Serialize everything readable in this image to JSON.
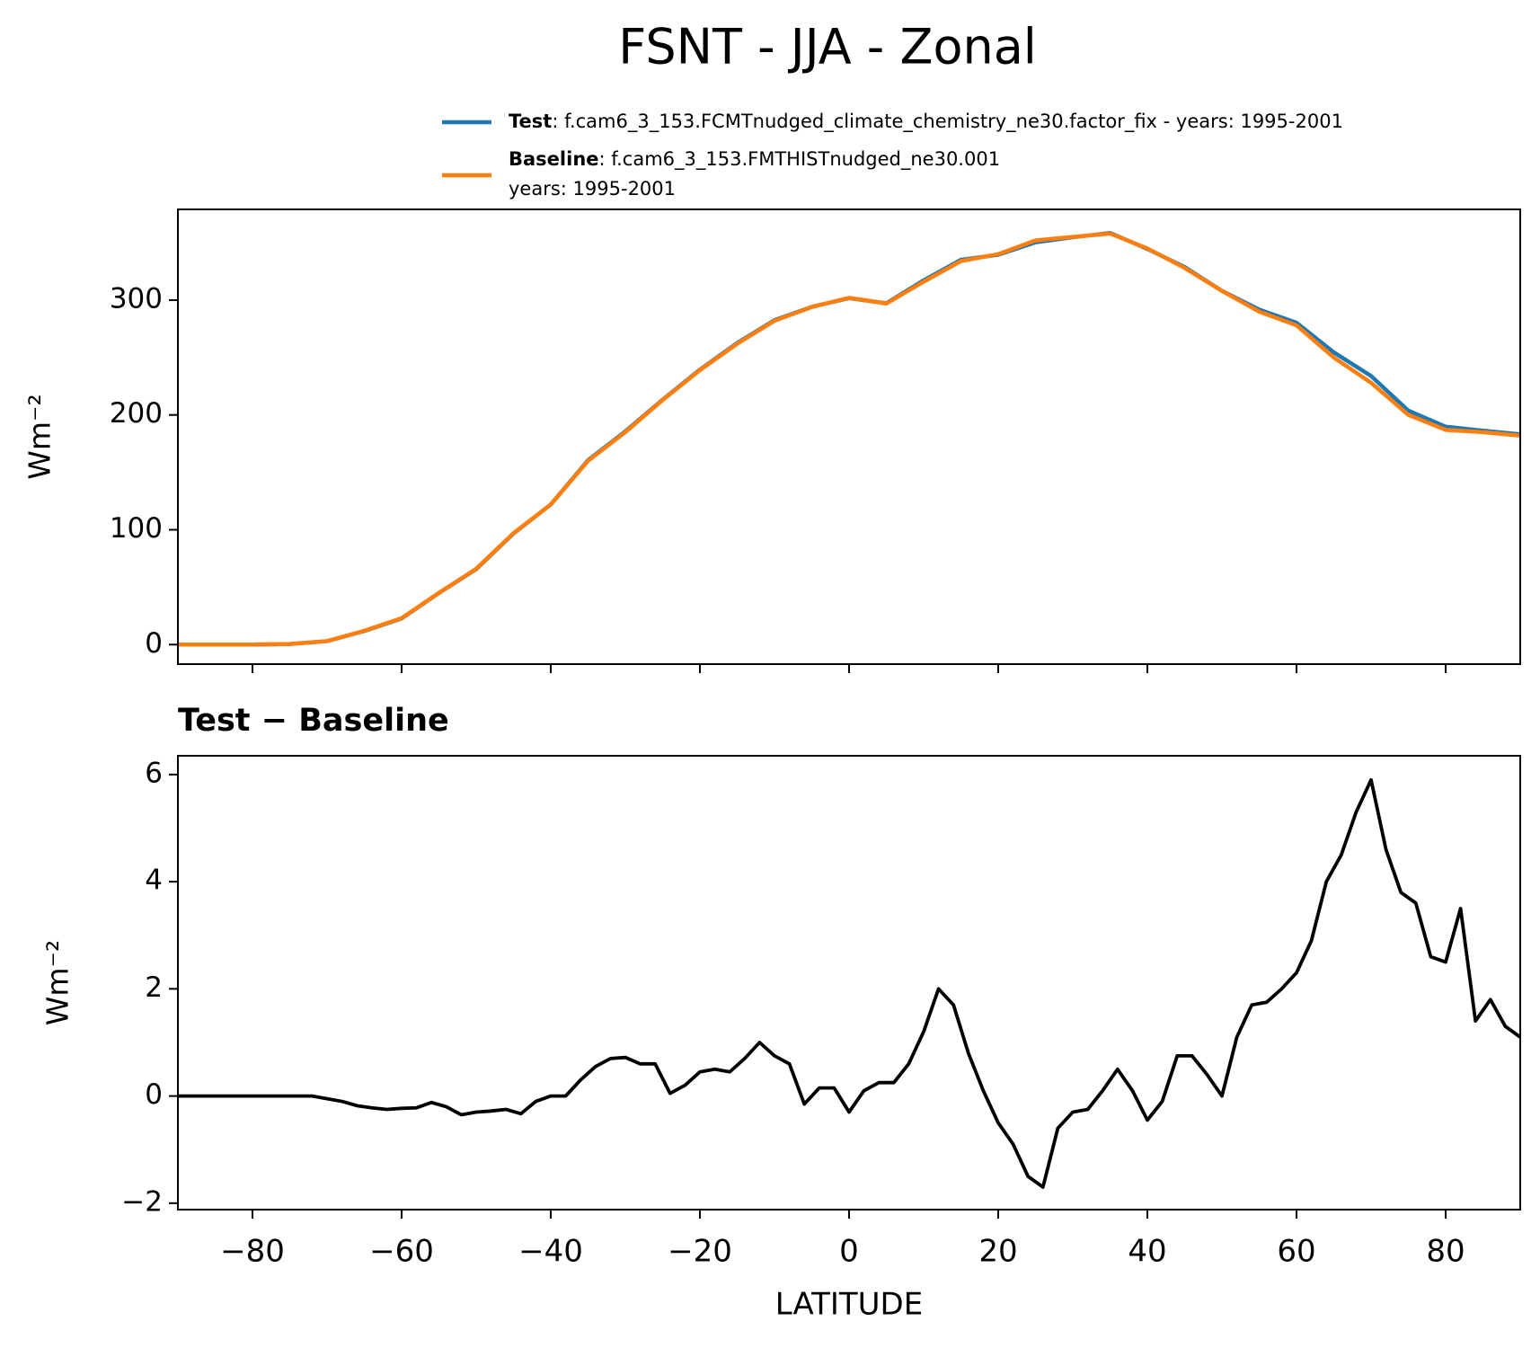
{
  "title": "FSNT - JJA - Zonal",
  "chart_data": [
    {
      "type": "line",
      "ylabel": "Wm⁻²",
      "x": [
        -90,
        -85,
        -80,
        -75,
        -70,
        -65,
        -60,
        -55,
        -50,
        -45,
        -40,
        -35,
        -30,
        -25,
        -20,
        -15,
        -10,
        -5,
        0,
        5,
        10,
        15,
        20,
        25,
        30,
        35,
        40,
        45,
        50,
        55,
        60,
        65,
        70,
        75,
        80,
        85,
        90
      ],
      "series": [
        {
          "name": "Test",
          "description": [
            ": f.cam6_3_153.FCMTnudged_climate_chemistry_ne30.factor_fix - years: 1995-2001"
          ],
          "color": "#1f77b4",
          "values": [
            0,
            0,
            0,
            0.5,
            3,
            11.8,
            22.75,
            44.9,
            65.7,
            96.7,
            122,
            160.6,
            185.7,
            213.3,
            239.45,
            262.65,
            282.55,
            294.1,
            301.7,
            297.25,
            317.2,
            335.1,
            339.5,
            350.3,
            354.7,
            358.5,
            344.55,
            328.75,
            308.1,
            291.7,
            280.3,
            254.5,
            233.9,
            203.7,
            189.8,
            186.3,
            183.1
          ]
        },
        {
          "name": "Baseline",
          "description": [
            ": f.cam6_3_153.FMTHISTnudged_ne30.001",
            "years: 1995-2001"
          ],
          "color": "#ff7f0e",
          "values": [
            0,
            0,
            0,
            0.5,
            3,
            12,
            23,
            45,
            66,
            97,
            122,
            160,
            185,
            213,
            239,
            262,
            282,
            294,
            302,
            297,
            316,
            334,
            340,
            352,
            355,
            358,
            345,
            328,
            308,
            290,
            278,
            250,
            228,
            200,
            187,
            185,
            182
          ]
        }
      ],
      "xlim": [
        -90,
        90
      ],
      "xticks": [
        -80,
        -60,
        -40,
        -20,
        0,
        20,
        40,
        60,
        80
      ],
      "ylim": [
        -17,
        379
      ],
      "yticks": [
        0,
        100,
        200,
        300
      ]
    },
    {
      "type": "line",
      "title": "Test − Baseline",
      "xlabel": "LATITUDE",
      "ylabel": "Wm⁻²",
      "x": [
        -90,
        -88,
        -86,
        -84,
        -82,
        -80,
        -78,
        -76,
        -74,
        -72,
        -70,
        -68,
        -66,
        -64,
        -62,
        -60,
        -58,
        -56,
        -54,
        -52,
        -50,
        -48,
        -46,
        -44,
        -42,
        -40,
        -38,
        -36,
        -34,
        -32,
        -30,
        -28,
        -26,
        -24,
        -22,
        -20,
        -18,
        -16,
        -14,
        -12,
        -10,
        -8,
        -6,
        -4,
        -2,
        0,
        2,
        4,
        6,
        8,
        10,
        12,
        14,
        16,
        18,
        20,
        22,
        24,
        26,
        28,
        30,
        32,
        34,
        36,
        38,
        40,
        42,
        44,
        46,
        48,
        50,
        52,
        54,
        56,
        58,
        60,
        62,
        64,
        66,
        68,
        70,
        72,
        74,
        76,
        78,
        80,
        82,
        84,
        86,
        88,
        90
      ],
      "series": [
        {
          "color": "#000000",
          "values": [
            0,
            0,
            0,
            0,
            0,
            0,
            0,
            0,
            0,
            0,
            -0.05,
            -0.1,
            -0.18,
            -0.22,
            -0.25,
            -0.23,
            -0.22,
            -0.12,
            -0.2,
            -0.35,
            -0.3,
            -0.28,
            -0.25,
            -0.33,
            -0.1,
            0,
            0,
            0.3,
            0.55,
            0.7,
            0.72,
            0.6,
            0.6,
            0.05,
            0.2,
            0.45,
            0.5,
            0.45,
            0.7,
            1.0,
            0.75,
            0.6,
            -0.15,
            0.15,
            0.15,
            -0.3,
            0.1,
            0.25,
            0.25,
            0.6,
            1.2,
            2.0,
            1.7,
            0.8,
            0.1,
            -0.5,
            -0.9,
            -1.5,
            -1.7,
            -0.6,
            -0.3,
            -0.25,
            0.1,
            0.5,
            0.1,
            -0.45,
            -0.1,
            0.75,
            0.75,
            0.4,
            0.0,
            1.1,
            1.7,
            1.75,
            2.0,
            2.3,
            2.9,
            4.0,
            4.5,
            5.3,
            5.9,
            4.6,
            3.8,
            3.6,
            2.6,
            2.5,
            3.5,
            1.4,
            1.8,
            1.3,
            1.1
          ]
        }
      ],
      "xlim": [
        -90,
        90
      ],
      "xticks": [
        {
          "value": -80,
          "label": "−80"
        },
        {
          "value": -60,
          "label": "−60"
        },
        {
          "value": -40,
          "label": "−40"
        },
        {
          "value": -20,
          "label": "−20"
        },
        0,
        20,
        40,
        60,
        80
      ],
      "ylim": [
        -2.12,
        6.35
      ],
      "yticks": [
        {
          "value": -2,
          "label": "−2"
        },
        0,
        2,
        4,
        6
      ]
    }
  ]
}
